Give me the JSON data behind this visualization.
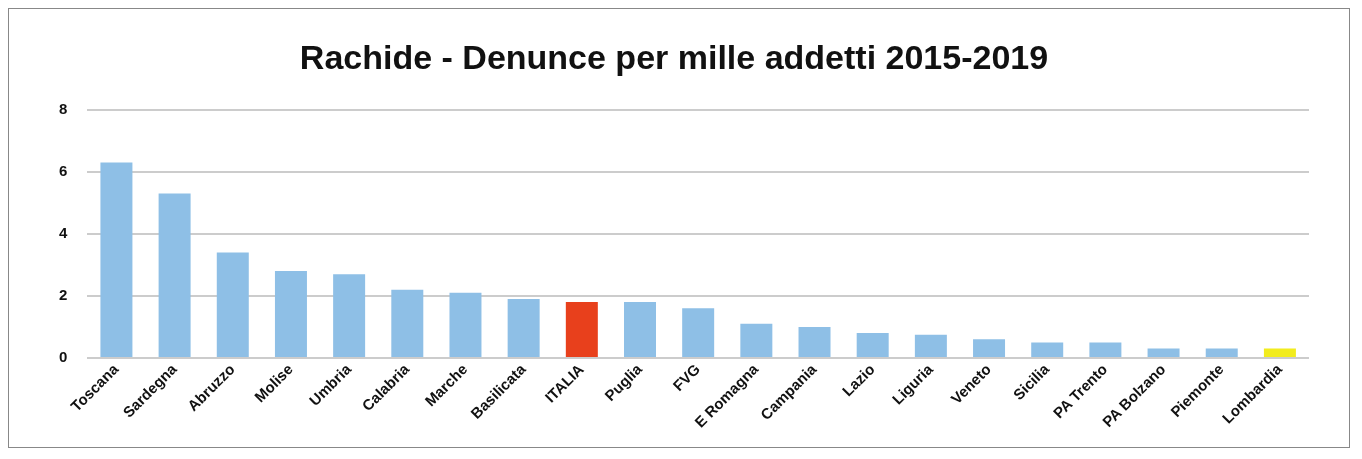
{
  "chart_data": {
    "type": "bar",
    "title": "Rachide - Denunce per mille addetti 2015-2019",
    "categories": [
      "Toscana",
      "Sardegna",
      "Abruzzo",
      "Molise",
      "Umbria",
      "Calabria",
      "Marche",
      "Basilicata",
      "ITALIA",
      "Puglia",
      "FVG",
      "E Romagna",
      "Campania",
      "Lazio",
      "Liguria",
      "Veneto",
      "Sicilia",
      "PA Trento",
      "PA Bolzano",
      "Piemonte",
      "Lombardia"
    ],
    "values": [
      6.3,
      5.3,
      3.4,
      2.8,
      2.7,
      2.2,
      2.1,
      1.9,
      1.8,
      1.8,
      1.6,
      1.1,
      1.0,
      0.8,
      0.75,
      0.6,
      0.5,
      0.5,
      0.3,
      0.3,
      0.3
    ],
    "colors": [
      "#8ebfe6",
      "#8ebfe6",
      "#8ebfe6",
      "#8ebfe6",
      "#8ebfe6",
      "#8ebfe6",
      "#8ebfe6",
      "#8ebfe6",
      "#e8401c",
      "#8ebfe6",
      "#8ebfe6",
      "#8ebfe6",
      "#8ebfe6",
      "#8ebfe6",
      "#8ebfe6",
      "#8ebfe6",
      "#8ebfe6",
      "#8ebfe6",
      "#8ebfe6",
      "#8ebfe6",
      "#f2ec1e"
    ],
    "ylim": [
      0,
      8
    ],
    "yticks": [
      0,
      2,
      4,
      6,
      8
    ],
    "grid": "y"
  }
}
